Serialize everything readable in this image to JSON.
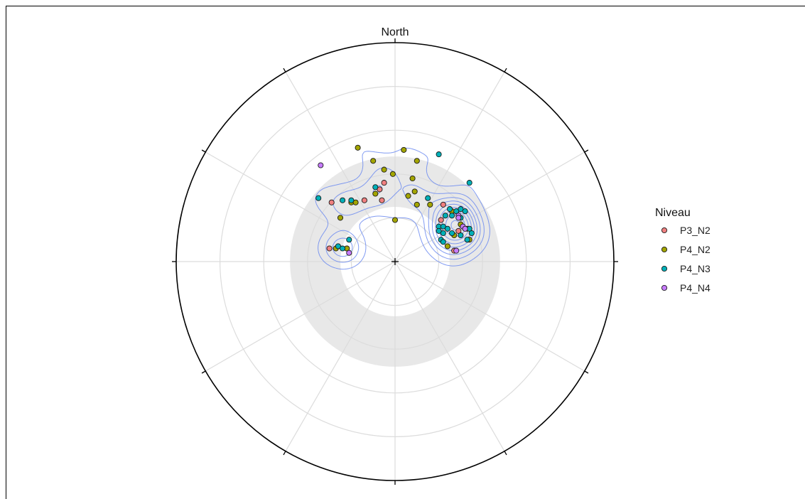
{
  "chart_data": {
    "type": "scatter",
    "subtype": "polar stereonet with density contours",
    "north_label": "North",
    "legend": {
      "title": "Niveau",
      "placement": "right",
      "entries": [
        {
          "name": "P3_N2",
          "color": "#F08080"
        },
        {
          "name": "P4_N2",
          "color": "#A3A500"
        },
        {
          "name": "P4_N3",
          "color": "#00B0B8"
        },
        {
          "name": "P4_N4",
          "color": "#C77CFF"
        }
      ]
    },
    "grid": true,
    "spokes_deg": 30,
    "rings": 4,
    "shaded_annulus": [
      0.25,
      0.48
    ],
    "contour_color": "#6B8AF0",
    "series": [
      {
        "name": "P3_N2",
        "color": "#F08080",
        "points": [
          [
            -0.05,
            0.36
          ],
          [
            -0.07,
            0.33
          ],
          [
            -0.29,
            0.27
          ],
          [
            -0.14,
            0.28
          ],
          [
            -0.06,
            0.28
          ],
          [
            -0.3,
            0.06
          ],
          [
            -0.22,
            0.06
          ],
          [
            0.22,
            0.26
          ],
          [
            0.21,
            0.19
          ],
          [
            0.29,
            0.14
          ],
          [
            0.27,
            0.05
          ]
        ]
      },
      {
        "name": "P4_N2",
        "color": "#A3A500",
        "points": [
          [
            -0.17,
            0.52
          ],
          [
            0.04,
            0.51
          ],
          [
            -0.1,
            0.46
          ],
          [
            -0.05,
            0.42
          ],
          [
            0.1,
            0.46
          ],
          [
            -0.01,
            0.4
          ],
          [
            0.08,
            0.38
          ],
          [
            0.09,
            0.32
          ],
          [
            0.06,
            0.3
          ],
          [
            -0.09,
            0.31
          ],
          [
            -0.2,
            0.27
          ],
          [
            -0.18,
            0.27
          ],
          [
            0.1,
            0.26
          ],
          [
            0.16,
            0.26
          ],
          [
            -0.25,
            0.2
          ],
          [
            0.0,
            0.19
          ],
          [
            -0.27,
            0.06
          ],
          [
            -0.22,
            0.06
          ],
          [
            0.26,
            0.23
          ],
          [
            0.3,
            0.17
          ],
          [
            0.33,
            0.15
          ],
          [
            0.27,
            0.12
          ],
          [
            0.34,
            0.1
          ],
          [
            0.24,
            0.07
          ]
        ]
      },
      {
        "name": "P4_N3",
        "color": "#00B0B8",
        "points": [
          [
            -0.35,
            0.29
          ],
          [
            -0.24,
            0.28
          ],
          [
            -0.2,
            0.28
          ],
          [
            -0.09,
            0.34
          ],
          [
            0.2,
            0.49
          ],
          [
            0.34,
            0.36
          ],
          [
            0.15,
            0.29
          ],
          [
            -0.26,
            0.07
          ],
          [
            -0.24,
            0.06
          ],
          [
            -0.21,
            0.1
          ],
          [
            0.23,
            0.21
          ],
          [
            0.25,
            0.24
          ],
          [
            0.28,
            0.23
          ],
          [
            0.3,
            0.24
          ],
          [
            0.32,
            0.23
          ],
          [
            0.3,
            0.2
          ],
          [
            0.26,
            0.21
          ],
          [
            0.2,
            0.16
          ],
          [
            0.22,
            0.16
          ],
          [
            0.24,
            0.15
          ],
          [
            0.22,
            0.13
          ],
          [
            0.26,
            0.13
          ],
          [
            0.2,
            0.14
          ],
          [
            0.3,
            0.12
          ],
          [
            0.35,
            0.13
          ],
          [
            0.34,
            0.15
          ],
          [
            0.21,
            0.1
          ],
          [
            0.33,
            0.1
          ],
          [
            0.22,
            0.09
          ]
        ]
      },
      {
        "name": "P4_N4",
        "color": "#C77CFF",
        "points": [
          [
            -0.34,
            0.44
          ],
          [
            0.29,
            0.21
          ],
          [
            0.29,
            0.2
          ],
          [
            -0.21,
            0.04
          ],
          [
            0.28,
            0.05
          ],
          [
            0.31,
            0.16
          ],
          [
            0.32,
            0.15
          ]
        ]
      }
    ]
  }
}
